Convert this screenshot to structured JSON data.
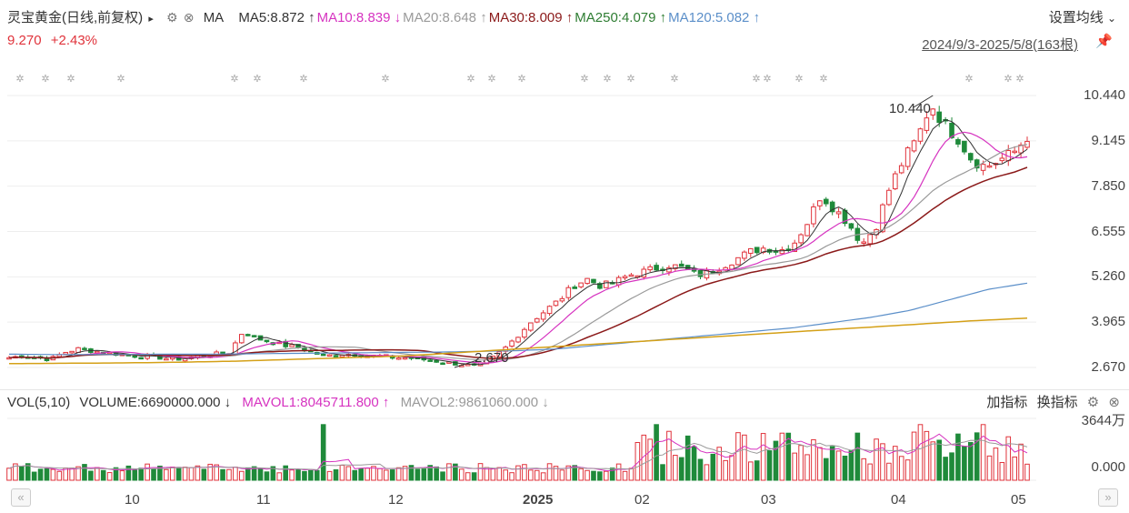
{
  "header": {
    "stock": "灵宝黄金(日线,前复权)",
    "more_icon": "▸",
    "ma_label": "MA",
    "ma_items": [
      {
        "text": "MA5:8.872",
        "arrow": "↑",
        "color": "#333333"
      },
      {
        "text": "MA10:8.839",
        "arrow": "↓",
        "color": "#d633c0"
      },
      {
        "text": "MA20:8.648",
        "arrow": "↑",
        "color": "#9a9a9a"
      },
      {
        "text": "MA30:8.009",
        "arrow": "↑",
        "color": "#8b1a1a"
      },
      {
        "text": "MA250:4.079",
        "arrow": "↑",
        "color": "#2e7d32"
      },
      {
        "text": "MA120:5.082",
        "arrow": "↑",
        "color": "#5b8fc9"
      }
    ],
    "settings_label": "设置均线",
    "settings_icon": "⌄"
  },
  "quote": {
    "price": "9.270",
    "change": "+2.43%"
  },
  "date_range": "2024/9/3-2025/5/8(163根)",
  "pin_icon": "pin-icon",
  "volume_header": {
    "vol": "VOL(5,10)",
    "volume": "VOLUME:6690000.000",
    "volume_arrow": "↓",
    "mavol1": "MAVOL1:8045711.800",
    "mavol1_arrow": "↑",
    "mavol2": "MAVOL2:9861060.000",
    "mavol2_arrow": "↓"
  },
  "volume_buttons": {
    "add": "加指标",
    "switch": "换指标"
  },
  "colors": {
    "up": "#e0333b",
    "down": "#1f8a3a",
    "ma5": "#333333",
    "ma10": "#d633c0",
    "ma20": "#9a9a9a",
    "ma30": "#8b1a1a",
    "ma120": "#5b8fc9",
    "ma250": "#d4a017"
  },
  "chart_data": {
    "type": "candlestick",
    "y_ticks": [
      "10.440",
      "9.145",
      "7.850",
      "6.555",
      "5.260",
      "3.965",
      "2.670"
    ],
    "ylim": [
      2.67,
      10.44
    ],
    "x_ticks": [
      "10",
      "11",
      "12",
      "2025",
      "02",
      "03",
      "04",
      "05"
    ],
    "annotations": {
      "high": "10.440",
      "low": "2.670"
    },
    "volume_ticks": [
      "3644万",
      "0.000"
    ],
    "series": {
      "close_approx": [
        2.95,
        3.0,
        2.95,
        2.9,
        3.1,
        3.2,
        3.15,
        3.1,
        3.05,
        3.0,
        3.0,
        2.95,
        2.9,
        2.95,
        3.0,
        3.05,
        3.1,
        3.7,
        3.5,
        3.4,
        3.3,
        3.25,
        3.1,
        3.0,
        3.05,
        3.05,
        3.0,
        3.0,
        2.95,
        2.95,
        2.9,
        2.85,
        2.8,
        2.75,
        2.7,
        2.9,
        3.2,
        3.6,
        4.0,
        4.3,
        4.6,
        5.0,
        5.2,
        5.0,
        5.1,
        5.3,
        5.4,
        5.5,
        5.6,
        5.5,
        5.3,
        5.4,
        5.6,
        5.8,
        6.0,
        6.1,
        6.0,
        6.2,
        6.8,
        7.6,
        7.2,
        6.8,
        6.2,
        6.7,
        7.8,
        8.6,
        9.2,
        10.2,
        9.6,
        9.2,
        8.6,
        8.4,
        8.6,
        8.8,
        9.27
      ],
      "ma120_approx": [
        3.05,
        3.04,
        3.04,
        3.04,
        3.05,
        3.05,
        3.06,
        3.07,
        3.08,
        3.09,
        3.1,
        3.11,
        3.13,
        3.15,
        3.2,
        3.3,
        3.4,
        3.5,
        3.6,
        3.7,
        3.8,
        3.95,
        4.1,
        4.3,
        4.6,
        4.9,
        5.08
      ],
      "ma250_approx": [
        2.78,
        2.79,
        2.8,
        2.82,
        2.85,
        2.9,
        2.95,
        3.0,
        3.1,
        3.2,
        3.3,
        3.4,
        3.5,
        3.6,
        3.7,
        3.8,
        3.9,
        4.0,
        4.08
      ]
    }
  },
  "nav": {
    "left": "«",
    "right": "»"
  }
}
